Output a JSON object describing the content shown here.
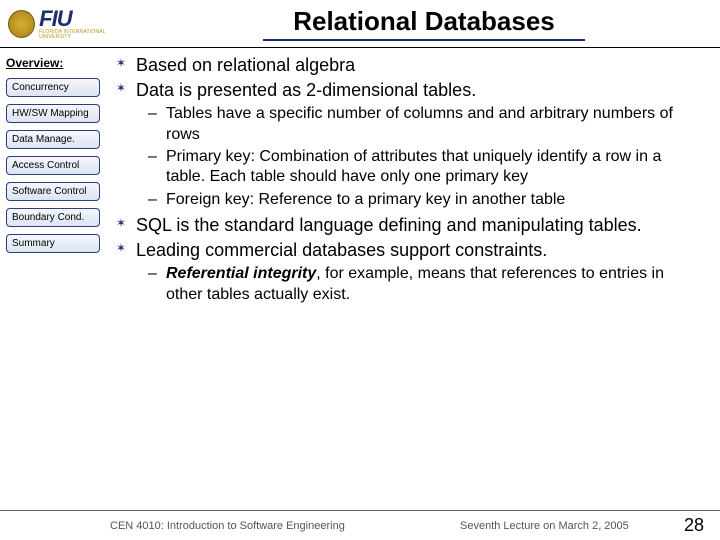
{
  "header": {
    "logo_text": "FIU",
    "logo_subtext": "FLORIDA INTERNATIONAL UNIVERSITY",
    "title": "Relational Databases"
  },
  "sidebar": {
    "heading": "Overview:",
    "items": [
      "Concurrency",
      "HW/SW Mapping",
      "Data Manage.",
      "Access Control",
      "Software Control",
      "Boundary Cond.",
      "Summary"
    ]
  },
  "content": {
    "bullets": [
      "Based on relational algebra",
      "Data is presented as 2-dimensional tables.",
      "SQL is the standard language defining and manipulating tables.",
      "Leading commercial databases support constraints."
    ],
    "sub1": [
      "Tables have a specific number of columns and and arbitrary numbers of rows",
      "Primary key: Combination of attributes that uniquely identify a row in a table. Each table should have only one primary key",
      "Foreign key: Reference to a primary key in another table"
    ],
    "sub2_strong": "Referential integrity",
    "sub2_rest": ", for example,  means that references to entries in other tables actually exist."
  },
  "footer": {
    "left": "CEN 4010: Introduction to Software Engineering",
    "center": "Seventh Lecture on March 2, 2005",
    "page": "28"
  },
  "colors": {
    "accent": "#1a2f6b",
    "gold": "#b8941f"
  }
}
